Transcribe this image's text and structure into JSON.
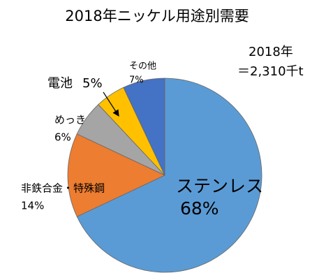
{
  "chart_data": {
    "type": "pie",
    "title": "2018年ニッケル用途別需要",
    "annotations": [
      "2018年",
      "＝2,310千t"
    ],
    "categories": [
      "ステンレス",
      "非鉄合金・特殊鋼",
      "めっき",
      "電池",
      "その他"
    ],
    "values": [
      68,
      14,
      6,
      5,
      7
    ],
    "value_labels": [
      "68%",
      "14%",
      "6%",
      "5%",
      "7%"
    ],
    "colors": [
      "#5b9bd5",
      "#ed7d31",
      "#a5a5a5",
      "#ffc000",
      "#4472c4"
    ]
  }
}
